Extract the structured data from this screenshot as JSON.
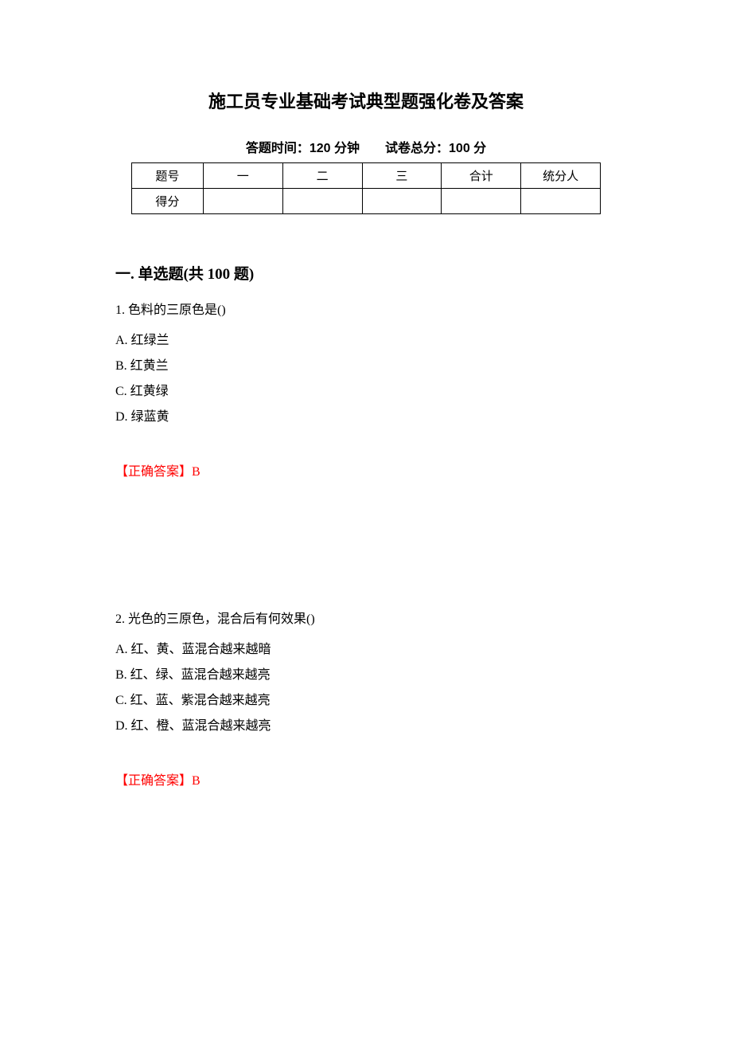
{
  "title": "施工员专业基础考试典型题强化卷及答案",
  "subtitle_prefix": "答题时间：",
  "subtitle_time": "120 分钟",
  "subtitle_gap": "　　",
  "subtitle_score_prefix": "试卷总分：",
  "subtitle_score": "100 分",
  "table": {
    "header_label": "题号",
    "score_label": "得分",
    "columns": [
      "一",
      "二",
      "三",
      "合计",
      "统分人"
    ]
  },
  "section_title": "一. 单选题(共 100 题)",
  "q1": {
    "stem": "1. 色料的三原色是()",
    "options": {
      "A": "A. 红绿兰",
      "B": "B. 红黄兰",
      "C": "C. 红黄绿",
      "D": "D. 绿蓝黄"
    },
    "answer_label": "【正确答案】",
    "answer_value": "B"
  },
  "q2": {
    "stem": "2. 光色的三原色，混合后有何效果()",
    "options": {
      "A": "A. 红、黄、蓝混合越来越暗",
      "B": "B. 红、绿、蓝混合越来越亮",
      "C": "C. 红、蓝、紫混合越来越亮",
      "D": "D. 红、橙、蓝混合越来越亮"
    },
    "answer_label": "【正确答案】",
    "answer_value": "B"
  },
  "colors": {
    "text": "#000000",
    "answer": "#ff0000",
    "background": "#ffffff",
    "border": "#000000"
  }
}
